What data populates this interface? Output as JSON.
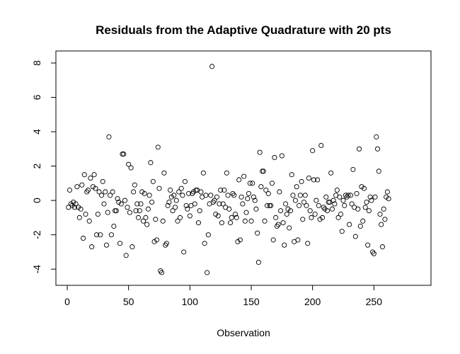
{
  "chart_data": {
    "type": "scatter",
    "title": "Residuals from the Adaptive Quadrature with 20 pts",
    "xlabel": "Observation",
    "ylabel": "",
    "xlim": [
      0,
      285
    ],
    "ylim": [
      -4.2,
      8.0
    ],
    "xticks": [
      0,
      50,
      100,
      150,
      200,
      250
    ],
    "yticks": [
      -4,
      -2,
      0,
      2,
      4,
      6,
      8
    ],
    "xtick_labels": [
      "0",
      "50",
      "100",
      "150",
      "200",
      "250"
    ],
    "ytick_labels": [
      "-4",
      "-2",
      "0",
      "2",
      "4",
      "6",
      "8"
    ],
    "grid": false,
    "marker": "open-circle",
    "points": [
      [
        1,
        -0.4
      ],
      [
        2,
        0.6
      ],
      [
        3,
        -0.2
      ],
      [
        4,
        -0.3
      ],
      [
        5,
        -0.1
      ],
      [
        6,
        -0.4
      ],
      [
        7,
        -0.2
      ],
      [
        8,
        0.8
      ],
      [
        9,
        -0.4
      ],
      [
        10,
        -1.0
      ],
      [
        11,
        -0.5
      ],
      [
        12,
        0.9
      ],
      [
        13,
        -2.2
      ],
      [
        14,
        1.5
      ],
      [
        15,
        -0.8
      ],
      [
        16,
        0.5
      ],
      [
        17,
        0.6
      ],
      [
        18,
        -1.2
      ],
      [
        19,
        1.3
      ],
      [
        20,
        -2.7
      ],
      [
        21,
        0.8
      ],
      [
        22,
        1.5
      ],
      [
        23,
        0.7
      ],
      [
        24,
        -2.0
      ],
      [
        25,
        -0.8
      ],
      [
        26,
        0.5
      ],
      [
        27,
        -2.0
      ],
      [
        28,
        0.3
      ],
      [
        29,
        1.1
      ],
      [
        30,
        -0.2
      ],
      [
        31,
        0.5
      ],
      [
        32,
        -2.6
      ],
      [
        33,
        -0.7
      ],
      [
        34,
        3.7
      ],
      [
        35,
        0.3
      ],
      [
        36,
        -2.0
      ],
      [
        37,
        0.5
      ],
      [
        38,
        -1.5
      ],
      [
        39,
        -0.6
      ],
      [
        40,
        -0.6
      ],
      [
        41,
        0.1
      ],
      [
        42,
        -0.1
      ],
      [
        43,
        -2.5
      ],
      [
        44,
        -0.2
      ],
      [
        45,
        2.7
      ],
      [
        46,
        2.7
      ],
      [
        47,
        0.0
      ],
      [
        48,
        -3.2
      ],
      [
        49,
        -0.4
      ],
      [
        50,
        2.1
      ],
      [
        51,
        -0.7
      ],
      [
        52,
        1.9
      ],
      [
        53,
        -2.7
      ],
      [
        54,
        0.5
      ],
      [
        55,
        0.9
      ],
      [
        56,
        -0.6
      ],
      [
        57,
        -0.2
      ],
      [
        58,
        -1.0
      ],
      [
        59,
        -0.6
      ],
      [
        60,
        -0.2
      ],
      [
        61,
        0.5
      ],
      [
        62,
        -1.2
      ],
      [
        63,
        0.4
      ],
      [
        64,
        -1.0
      ],
      [
        65,
        -1.4
      ],
      [
        66,
        -0.5
      ],
      [
        67,
        0.3
      ],
      [
        68,
        2.2
      ],
      [
        69,
        -0.1
      ],
      [
        70,
        1.1
      ],
      [
        71,
        -2.4
      ],
      [
        72,
        -1.1
      ],
      [
        73,
        -2.3
      ],
      [
        74,
        3.1
      ],
      [
        75,
        0.7
      ],
      [
        76,
        -4.1
      ],
      [
        77,
        -4.2
      ],
      [
        78,
        -1.2
      ],
      [
        79,
        1.6
      ],
      [
        80,
        -2.6
      ],
      [
        81,
        -2.5
      ],
      [
        82,
        -0.3
      ],
      [
        83,
        -0.1
      ],
      [
        84,
        0.6
      ],
      [
        85,
        0.2
      ],
      [
        86,
        -0.6
      ],
      [
        87,
        0.3
      ],
      [
        88,
        -0.4
      ],
      [
        89,
        0.0
      ],
      [
        90,
        -1.2
      ],
      [
        91,
        0.5
      ],
      [
        92,
        -1.0
      ],
      [
        93,
        0.7
      ],
      [
        94,
        0.3
      ],
      [
        95,
        -3.0
      ],
      [
        96,
        1.1
      ],
      [
        97,
        -0.3
      ],
      [
        98,
        -0.5
      ],
      [
        99,
        0.4
      ],
      [
        100,
        -0.9
      ],
      [
        101,
        -0.3
      ],
      [
        102,
        0.4
      ],
      [
        103,
        0.5
      ],
      [
        104,
        -0.2
      ],
      [
        105,
        0.6
      ],
      [
        106,
        0.6
      ],
      [
        107,
        -1.3
      ],
      [
        108,
        -0.6
      ],
      [
        109,
        0.5
      ],
      [
        110,
        0.2
      ],
      [
        111,
        1.6
      ],
      [
        112,
        -2.5
      ],
      [
        113,
        0.3
      ],
      [
        114,
        -4.2
      ],
      [
        115,
        -2.0
      ],
      [
        116,
        -0.2
      ],
      [
        117,
        0.3
      ],
      [
        118,
        7.8
      ],
      [
        119,
        -0.1
      ],
      [
        120,
        0.0
      ],
      [
        121,
        -0.8
      ],
      [
        122,
        0.2
      ],
      [
        123,
        -0.9
      ],
      [
        124,
        -0.2
      ],
      [
        125,
        0.6
      ],
      [
        126,
        -1.3
      ],
      [
        127,
        -0.2
      ],
      [
        128,
        0.6
      ],
      [
        129,
        -0.4
      ],
      [
        130,
        1.6
      ],
      [
        131,
        0.3
      ],
      [
        132,
        -0.5
      ],
      [
        133,
        -1.3
      ],
      [
        134,
        -1.0
      ],
      [
        135,
        0.4
      ],
      [
        136,
        0.3
      ],
      [
        137,
        -0.8
      ],
      [
        138,
        -1.0
      ],
      [
        139,
        -2.4
      ],
      [
        140,
        1.2
      ],
      [
        141,
        -2.3
      ],
      [
        142,
        0.2
      ],
      [
        143,
        -0.2
      ],
      [
        144,
        1.4
      ],
      [
        145,
        -1.2
      ],
      [
        146,
        -0.7
      ],
      [
        147,
        0.1
      ],
      [
        148,
        0.4
      ],
      [
        149,
        1.0
      ],
      [
        150,
        -1.2
      ],
      [
        151,
        1.0
      ],
      [
        152,
        0.2
      ],
      [
        153,
        0.0
      ],
      [
        154,
        -0.5
      ],
      [
        155,
        -1.9
      ],
      [
        156,
        -3.6
      ],
      [
        157,
        2.8
      ],
      [
        158,
        0.8
      ],
      [
        159,
        1.7
      ],
      [
        160,
        1.7
      ],
      [
        161,
        -1.2
      ],
      [
        162,
        0.6
      ],
      [
        163,
        -0.3
      ],
      [
        164,
        0.4
      ],
      [
        165,
        -0.3
      ],
      [
        166,
        -0.3
      ],
      [
        167,
        1.0
      ],
      [
        168,
        -2.3
      ],
      [
        169,
        2.5
      ],
      [
        170,
        -1.0
      ],
      [
        171,
        -1.5
      ],
      [
        172,
        -1.4
      ],
      [
        173,
        0.5
      ],
      [
        174,
        -0.6
      ],
      [
        175,
        2.6
      ],
      [
        176,
        -1.3
      ],
      [
        177,
        -2.6
      ],
      [
        178,
        -0.2
      ],
      [
        179,
        -0.8
      ],
      [
        180,
        -0.5
      ],
      [
        181,
        -1.6
      ],
      [
        182,
        -0.6
      ],
      [
        183,
        1.5
      ],
      [
        184,
        0.3
      ],
      [
        185,
        -2.4
      ],
      [
        186,
        0.0
      ],
      [
        187,
        0.8
      ],
      [
        188,
        -2.3
      ],
      [
        189,
        -0.3
      ],
      [
        190,
        0.3
      ],
      [
        191,
        1.1
      ],
      [
        192,
        -1.1
      ],
      [
        193,
        -0.1
      ],
      [
        194,
        0.3
      ],
      [
        195,
        -0.3
      ],
      [
        196,
        -2.5
      ],
      [
        197,
        1.3
      ],
      [
        198,
        -0.6
      ],
      [
        199,
        -1.0
      ],
      [
        200,
        2.9
      ],
      [
        201,
        1.2
      ],
      [
        202,
        -0.8
      ],
      [
        203,
        0.0
      ],
      [
        204,
        1.2
      ],
      [
        205,
        -0.3
      ],
      [
        206,
        -1.1
      ],
      [
        207,
        3.2
      ],
      [
        208,
        -1.0
      ],
      [
        209,
        -0.4
      ],
      [
        210,
        -0.5
      ],
      [
        211,
        0.2
      ],
      [
        212,
        -0.6
      ],
      [
        213,
        -0.1
      ],
      [
        214,
        -0.1
      ],
      [
        215,
        1.6
      ],
      [
        216,
        -0.5
      ],
      [
        217,
        0.0
      ],
      [
        218,
        -0.2
      ],
      [
        219,
        0.3
      ],
      [
        220,
        0.6
      ],
      [
        221,
        -1.0
      ],
      [
        222,
        0.2
      ],
      [
        223,
        -0.8
      ],
      [
        224,
        -1.8
      ],
      [
        225,
        0.0
      ],
      [
        226,
        -0.3
      ],
      [
        227,
        0.3
      ],
      [
        228,
        0.2
      ],
      [
        229,
        0.3
      ],
      [
        230,
        -1.4
      ],
      [
        231,
        0.3
      ],
      [
        232,
        -0.2
      ],
      [
        233,
        1.8
      ],
      [
        234,
        -0.4
      ],
      [
        235,
        -2.1
      ],
      [
        236,
        0.4
      ],
      [
        237,
        -0.5
      ],
      [
        238,
        3.0
      ],
      [
        239,
        -1.5
      ],
      [
        240,
        0.8
      ],
      [
        241,
        -1.2
      ],
      [
        242,
        0.7
      ],
      [
        243,
        -0.4
      ],
      [
        244,
        -0.1
      ],
      [
        245,
        -2.6
      ],
      [
        246,
        -0.6
      ],
      [
        247,
        0.2
      ],
      [
        248,
        0.0
      ],
      [
        249,
        -3.0
      ],
      [
        250,
        -3.1
      ],
      [
        251,
        0.2
      ],
      [
        252,
        3.7
      ],
      [
        253,
        3.0
      ],
      [
        254,
        1.7
      ],
      [
        255,
        -0.8
      ],
      [
        256,
        -1.4
      ],
      [
        257,
        -2.7
      ],
      [
        258,
        -0.5
      ],
      [
        259,
        -1.1
      ],
      [
        260,
        0.2
      ],
      [
        261,
        0.5
      ],
      [
        262,
        0.1
      ]
    ]
  }
}
